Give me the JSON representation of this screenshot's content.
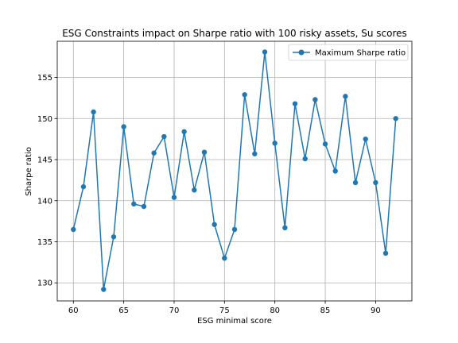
{
  "chart_data": {
    "type": "line",
    "title": "ESG Constraints impact on Sharpe ratio with 100 risky assets, Su scores",
    "xlabel": "ESG minimal score",
    "ylabel": "Sharpe ratio",
    "xlim": [
      58.4,
      93.6
    ],
    "ylim": [
      127.8,
      159.4
    ],
    "xticks": [
      60,
      65,
      70,
      75,
      80,
      85,
      90
    ],
    "yticks": [
      130,
      135,
      140,
      145,
      150,
      155
    ],
    "grid": true,
    "legend_position": "top-right",
    "color": "#1f77b4",
    "series": [
      {
        "name": "Maximum Sharpe ratio",
        "marker": "circle",
        "x": [
          60,
          61,
          62,
          63,
          64,
          65,
          66,
          67,
          68,
          69,
          70,
          71,
          72,
          73,
          74,
          75,
          76,
          77,
          78,
          79,
          80,
          81,
          82,
          83,
          84,
          85,
          86,
          87,
          88,
          89,
          90,
          91,
          92
        ],
        "y": [
          136.5,
          141.7,
          150.8,
          129.2,
          135.6,
          149.0,
          139.6,
          139.3,
          145.8,
          147.8,
          140.4,
          148.4,
          141.3,
          145.9,
          137.1,
          133.0,
          136.5,
          152.9,
          145.7,
          158.1,
          147.0,
          136.7,
          151.8,
          145.1,
          152.3,
          146.9,
          143.6,
          152.7,
          142.2,
          147.5,
          142.2,
          133.6,
          150.0
        ]
      }
    ]
  }
}
